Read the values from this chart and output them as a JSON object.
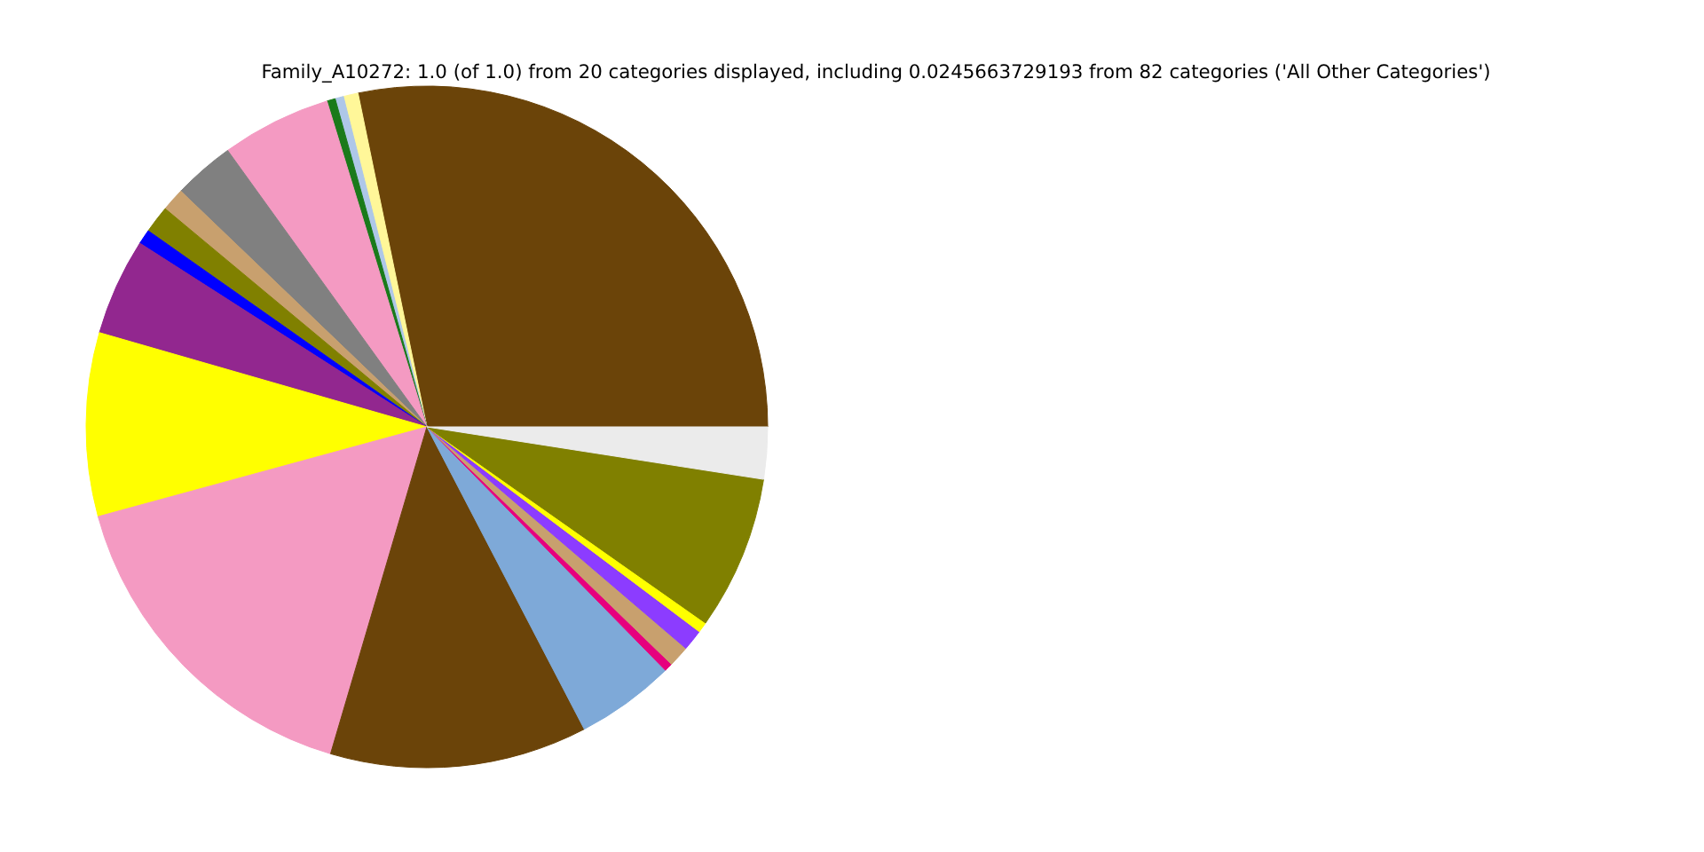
{
  "chart_data": {
    "type": "pie",
    "title": "Family_A10272: 1.0 (of 1.0) from 20 categories displayed, including 0.0245663729193 from 82 categories ('All Other Categories')",
    "categories": [
      null,
      null,
      null,
      null,
      null,
      null,
      null,
      null,
      null,
      null,
      null,
      null,
      null,
      null,
      null,
      null,
      null,
      null,
      null,
      null
    ],
    "values": [
      28.24,
      0.7,
      0.4,
      0.4,
      5.2,
      2.9,
      1.1,
      1.3,
      0.7,
      4.6,
      8.7,
      16.2,
      12.2,
      4.7,
      0.4,
      1.0,
      1.0,
      0.5,
      7.3,
      2.46
    ],
    "colors": [
      "#6b4409",
      "#fff799",
      "#aec7e8",
      "#1a7a1a",
      "#f49ac2",
      "#808080",
      "#c8a06e",
      "#808000",
      "#0000ff",
      "#92278f",
      "#ffff00",
      "#f49ac2",
      "#6b4409",
      "#7ea9d8",
      "#e6007e",
      "#c8a06e",
      "#8c3cff",
      "#ffff00",
      "#808000",
      "#ebebeb"
    ]
  }
}
